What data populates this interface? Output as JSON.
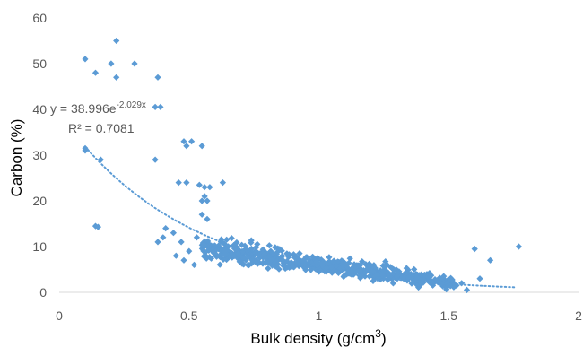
{
  "chart_data": {
    "type": "scatter",
    "title": "",
    "xlabel": "Bulk density (g/cm",
    "xlabel_sup": "3",
    "xlabel_suffix": ")",
    "ylabel": "Carbon (%)",
    "xlim": [
      0,
      2
    ],
    "ylim": [
      0,
      60
    ],
    "xticks": [
      0,
      0.5,
      1,
      1.5,
      2
    ],
    "xtick_labels": [
      "0",
      "0.5",
      "1",
      "1.5",
      "2"
    ],
    "yticks": [
      0,
      10,
      20,
      30,
      40,
      50,
      60
    ],
    "ytick_labels": [
      "0",
      "10",
      "20",
      "30",
      "40",
      "50",
      "60"
    ],
    "grid": false,
    "legend": "none",
    "marker_color": "#5b9bd5",
    "trendline": {
      "type": "exponential",
      "a": 38.996,
      "b": -2.029,
      "x_range": [
        0.1,
        1.76
      ],
      "style": "dotted",
      "color": "#5b9bd5"
    },
    "annotations": {
      "equation_prefix": "y = 38.996e",
      "equation_exponent": "-2.029x",
      "r2": "R² = 0.7081"
    },
    "points": [
      [
        0.1,
        51
      ],
      [
        0.14,
        48
      ],
      [
        0.2,
        50
      ],
      [
        0.22,
        55
      ],
      [
        0.22,
        47
      ],
      [
        0.29,
        50
      ],
      [
        0.38,
        47
      ],
      [
        0.37,
        40.5
      ],
      [
        0.39,
        40.5
      ],
      [
        0.1,
        31.5
      ],
      [
        0.1,
        31
      ],
      [
        0.16,
        29
      ],
      [
        0.14,
        14.5
      ],
      [
        0.15,
        14.3
      ],
      [
        0.37,
        29
      ],
      [
        0.48,
        33
      ],
      [
        0.49,
        32
      ],
      [
        0.51,
        33
      ],
      [
        0.55,
        32
      ],
      [
        0.46,
        24
      ],
      [
        0.49,
        24
      ],
      [
        0.54,
        23.5
      ],
      [
        0.56,
        23
      ],
      [
        0.58,
        23
      ],
      [
        0.63,
        24
      ],
      [
        0.56,
        21
      ],
      [
        0.55,
        20
      ],
      [
        0.57,
        20
      ],
      [
        0.55,
        17
      ],
      [
        0.57,
        16
      ],
      [
        0.38,
        11
      ],
      [
        0.4,
        12
      ],
      [
        0.41,
        14
      ],
      [
        0.44,
        13
      ],
      [
        0.47,
        11
      ],
      [
        0.45,
        8
      ],
      [
        0.5,
        9
      ],
      [
        0.52,
        6
      ],
      [
        0.48,
        7
      ],
      [
        0.53,
        12
      ],
      [
        1.6,
        9.5
      ],
      [
        1.77,
        10
      ],
      [
        1.66,
        7
      ],
      [
        1.62,
        3
      ],
      [
        1.57,
        0.5
      ],
      [
        1.53,
        1.5
      ],
      [
        1.55,
        2
      ]
    ],
    "cloud_seed": 7,
    "cloud_count": 620
  }
}
